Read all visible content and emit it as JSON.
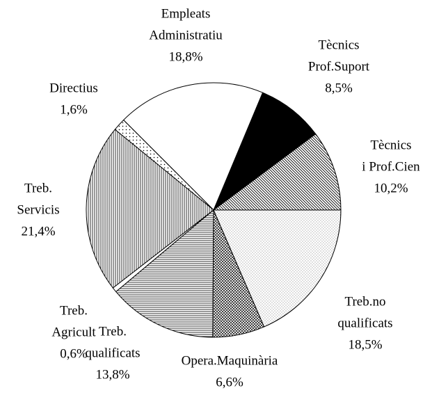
{
  "chart_data": {
    "type": "pie",
    "categories": [
      [
        "Tècnics",
        "i Prof.Cien"
      ],
      [
        "Tècnics",
        "Prof.Suport"
      ],
      [
        "Empleats",
        "Administratiu"
      ],
      [
        "Directius"
      ],
      [
        "Treb.",
        "Servicis"
      ],
      [
        "Treb.",
        "Agricult"
      ],
      [
        "Treb.",
        "qualificats"
      ],
      [
        "Opera.Maquinària"
      ],
      [
        "Treb.no",
        "qualificats"
      ]
    ],
    "values": [
      10.2,
      8.5,
      18.8,
      1.6,
      21.4,
      0.6,
      13.8,
      6.6,
      18.5
    ],
    "value_labels": [
      "10,2%",
      "8,5%",
      "18,8%",
      "1,6%",
      "21,4%",
      "0,6%",
      "13,8%",
      "6,6%",
      "18,5%"
    ]
  }
}
